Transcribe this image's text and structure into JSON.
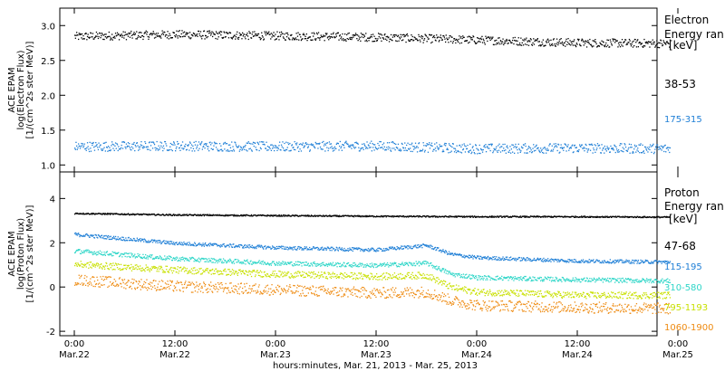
{
  "chart_data": [
    {
      "type": "scatter",
      "ylabel_lines": [
        "ACE EPAM",
        "log(Electron Flux)",
        "[1/(cm^2s ster MeV)]"
      ],
      "ylim": [
        0.9,
        3.25
      ],
      "yticks": [
        1.0,
        1.5,
        2.0,
        2.5,
        3.0
      ],
      "ytick_labels": [
        "1.0",
        "1.5",
        "2.0",
        "2.5",
        "3.0"
      ],
      "legend_title_lines": [
        "Electron",
        "Energy ran",
        "[keV]"
      ],
      "series": [
        {
          "name": "38-53",
          "color": "#000000",
          "x_hours": [
            0,
            12,
            24,
            36,
            48,
            60,
            71
          ],
          "y": [
            2.85,
            2.88,
            2.86,
            2.84,
            2.8,
            2.76,
            2.75
          ],
          "spread": 0.06
        },
        {
          "name": "175-315",
          "color": "#1f7fd6",
          "x_hours": [
            0,
            12,
            24,
            36,
            48,
            60,
            71
          ],
          "y": [
            1.27,
            1.28,
            1.27,
            1.28,
            1.24,
            1.25,
            1.24
          ],
          "spread": 0.07
        }
      ]
    },
    {
      "type": "scatter",
      "ylabel_lines": [
        "ACE EPAM",
        "log(Proton Flux)",
        "[1/(cm^2s ster MeV)]"
      ],
      "ylim": [
        -2.2,
        5.2
      ],
      "yticks": [
        -2,
        0,
        2,
        4
      ],
      "ytick_labels": [
        "-2",
        "0",
        "2",
        "4"
      ],
      "legend_title_lines": [
        "Proton",
        "Energy ran",
        "[keV]"
      ],
      "series": [
        {
          "name": "47-68",
          "color": "#000000",
          "x_hours": [
            0,
            12,
            24,
            36,
            48,
            60,
            71
          ],
          "y": [
            3.35,
            3.28,
            3.25,
            3.22,
            3.2,
            3.2,
            3.18
          ],
          "spread": 0.03
        },
        {
          "name": "115-195",
          "color": "#1f7fd6",
          "x_hours": [
            0,
            12,
            24,
            36,
            42,
            45,
            48,
            60,
            71
          ],
          "y": [
            2.4,
            2.0,
            1.8,
            1.7,
            1.9,
            1.5,
            1.35,
            1.2,
            1.15
          ],
          "spread": 0.08
        },
        {
          "name": "310-580",
          "color": "#2fd6c8",
          "x_hours": [
            0,
            12,
            24,
            36,
            42,
            45,
            48,
            60,
            71
          ],
          "y": [
            1.65,
            1.3,
            1.1,
            1.0,
            1.1,
            0.6,
            0.45,
            0.35,
            0.3
          ],
          "spread": 0.1
        },
        {
          "name": "795-1193",
          "color": "#c8e000",
          "x_hours": [
            0,
            12,
            24,
            36,
            42,
            45,
            48,
            60,
            71
          ],
          "y": [
            1.05,
            0.8,
            0.6,
            0.5,
            0.55,
            0.0,
            -0.2,
            -0.35,
            -0.35
          ],
          "spread": 0.15
        },
        {
          "name": "1060-1900",
          "color": "#ee8a10",
          "x_hours": [
            0,
            12,
            24,
            36,
            42,
            45,
            48,
            60,
            71
          ],
          "y": [
            0.35,
            0.05,
            -0.1,
            -0.25,
            -0.2,
            -0.6,
            -0.8,
            -0.9,
            -0.95
          ],
          "spread": 0.25
        }
      ]
    }
  ],
  "xaxis": {
    "range_hours": [
      0,
      72
    ],
    "ticks": [
      {
        "hour": 0,
        "time": "0:00",
        "date": "Mar.22"
      },
      {
        "hour": 12,
        "time": "12:00",
        "date": "Mar.22"
      },
      {
        "hour": 24,
        "time": "0:00",
        "date": "Mar.23"
      },
      {
        "hour": 36,
        "time": "12:00",
        "date": "Mar.23"
      },
      {
        "hour": 48,
        "time": "0:00",
        "date": "Mar.24"
      },
      {
        "hour": 60,
        "time": "12:00",
        "date": "Mar.24"
      },
      {
        "hour": 72,
        "time": "0:00",
        "date": "Mar.25"
      }
    ],
    "label": "hours:minutes, Mar. 21, 2013 - Mar. 25, 2013"
  }
}
